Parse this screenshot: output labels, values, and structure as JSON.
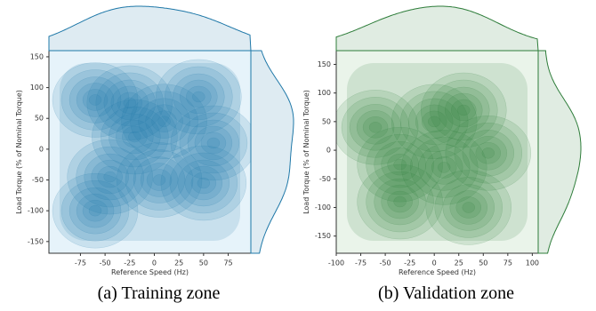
{
  "chart_data": [
    {
      "type": "kde",
      "caption": "(a) Training zone",
      "xlabel": "Reference Speed (Hz)",
      "ylabel": "Load Torque (% of Nominal Torque)",
      "xlim": [
        -107,
        98
      ],
      "ylim": [
        -169,
        160
      ],
      "xticks": [
        -75,
        -50,
        -25,
        0,
        25,
        50,
        75
      ],
      "yticks": [
        -150,
        -100,
        -50,
        0,
        50,
        100,
        150
      ],
      "color": "#1f78a8",
      "background": "#e6f3fa",
      "modes": [
        {
          "x": -25,
          "y": 75
        },
        {
          "x": -60,
          "y": 80
        },
        {
          "x": 45,
          "y": 85
        },
        {
          "x": 10,
          "y": 45
        },
        {
          "x": -20,
          "y": 20
        },
        {
          "x": 5,
          "y": -50
        },
        {
          "x": 50,
          "y": -55
        },
        {
          "x": -45,
          "y": -45
        },
        {
          "x": -60,
          "y": -100
        },
        {
          "x": 60,
          "y": 10
        }
      ]
    },
    {
      "type": "kde",
      "caption": "(b) Validation zone",
      "xlabel": "Reference Speed (Hz)",
      "ylabel": "Load Torque (% of Nominal Torque)",
      "xlim": [
        -100,
        106
      ],
      "ylim": [
        -180,
        174
      ],
      "xticks": [
        -100,
        -75,
        -50,
        -25,
        0,
        25,
        50,
        75,
        100
      ],
      "yticks": [
        -150,
        -100,
        -50,
        0,
        50,
        100,
        150
      ],
      "color": "#2e7d3a",
      "background": "#eaf4ea",
      "modes": [
        {
          "x": -35,
          "y": -25
        },
        {
          "x": 55,
          "y": -5
        },
        {
          "x": 35,
          "y": -100
        },
        {
          "x": -35,
          "y": -90
        },
        {
          "x": 0,
          "y": 50
        },
        {
          "x": 30,
          "y": 70
        },
        {
          "x": -60,
          "y": 40
        },
        {
          "x": 10,
          "y": -30
        }
      ]
    }
  ]
}
